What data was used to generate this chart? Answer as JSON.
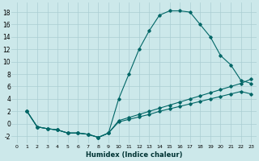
{
  "xlabel": "Humidex (Indice chaleur)",
  "bg_color": "#cce8ea",
  "grid_color": "#aacdd2",
  "line_color": "#006666",
  "xlim": [
    -0.5,
    23.5
  ],
  "ylim": [
    -3.2,
    19.5
  ],
  "xticks": [
    0,
    1,
    2,
    3,
    4,
    5,
    6,
    7,
    8,
    9,
    10,
    11,
    12,
    13,
    14,
    15,
    16,
    17,
    18,
    19,
    20,
    21,
    22,
    23
  ],
  "yticks": [
    -2,
    0,
    2,
    4,
    6,
    8,
    10,
    12,
    14,
    16,
    18
  ],
  "line1_x": [
    1,
    2,
    3,
    4,
    5,
    6,
    7,
    8,
    9,
    10,
    11,
    12,
    13,
    14,
    15,
    16,
    17,
    18,
    19,
    20,
    21,
    22,
    23
  ],
  "line1_y": [
    2,
    -0.5,
    -0.8,
    -1.0,
    -1.5,
    -1.5,
    -1.7,
    -2.2,
    -1.5,
    4.0,
    8.0,
    12.0,
    15.0,
    17.5,
    18.2,
    18.2,
    18.0,
    16.0,
    14.0,
    11.0,
    9.5,
    7.0,
    6.5
  ],
  "line2_x": [
    1,
    2,
    3,
    4,
    5,
    6,
    7,
    8,
    9,
    10,
    11,
    12,
    13,
    14,
    15,
    16,
    17,
    18,
    19,
    20,
    21,
    22,
    23
  ],
  "line2_y": [
    2,
    -0.5,
    -0.8,
    -1.0,
    -1.5,
    -1.5,
    -1.7,
    -2.2,
    -1.5,
    0.3,
    0.7,
    1.1,
    1.5,
    2.0,
    2.4,
    2.8,
    3.2,
    3.6,
    4.0,
    4.4,
    4.8,
    5.2,
    4.8
  ],
  "line3_x": [
    1,
    2,
    3,
    4,
    5,
    6,
    7,
    8,
    9,
    10,
    11,
    12,
    13,
    14,
    15,
    16,
    17,
    18,
    19,
    20,
    21,
    22,
    23
  ],
  "line3_y": [
    2,
    -0.5,
    -0.8,
    -1.0,
    -1.5,
    -1.5,
    -1.7,
    -2.2,
    -1.5,
    0.5,
    1.0,
    1.5,
    2.0,
    2.5,
    3.0,
    3.5,
    4.0,
    4.5,
    5.0,
    5.5,
    6.0,
    6.5,
    7.2
  ]
}
